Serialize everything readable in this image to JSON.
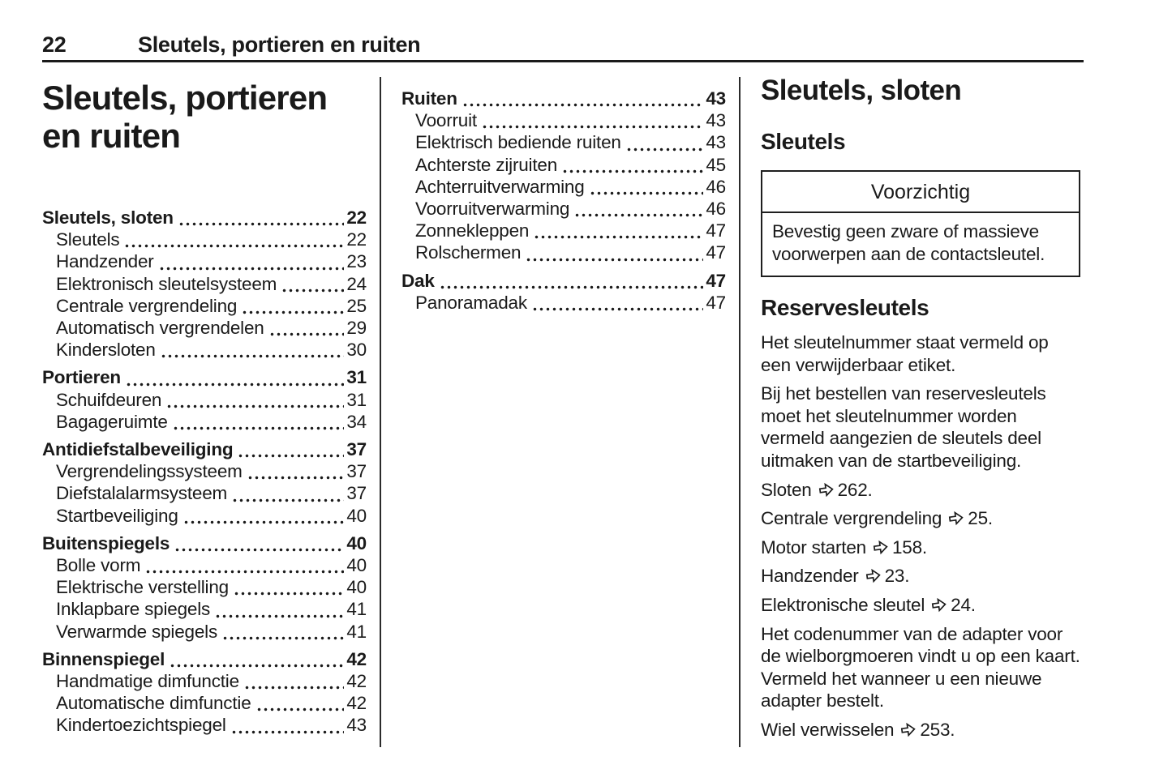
{
  "header": {
    "page_number": "22",
    "chapter_title": "Sleutels, portieren en ruiten"
  },
  "left_column": {
    "title": "Sleutels, portieren en ruiten",
    "toc": [
      {
        "label": "Sleutels, sloten",
        "page": "22",
        "bold": true
      },
      {
        "label": "Sleutels",
        "page": "22"
      },
      {
        "label": "Handzender",
        "page": "23"
      },
      {
        "label": "Elektronisch sleutelsysteem",
        "page": "24"
      },
      {
        "label": "Centrale vergrendeling",
        "page": "25"
      },
      {
        "label": "Automatisch vergrendelen",
        "page": "29"
      },
      {
        "label": "Kindersloten",
        "page": "30"
      },
      {
        "label": "Portieren",
        "page": "31",
        "bold": true
      },
      {
        "label": "Schuifdeuren",
        "page": "31"
      },
      {
        "label": "Bagageruimte",
        "page": "34"
      },
      {
        "label": "Antidiefstalbeveiliging",
        "page": "37",
        "bold": true
      },
      {
        "label": "Vergrendelingssysteem",
        "page": "37"
      },
      {
        "label": "Diefstalalarmsysteem",
        "page": "37"
      },
      {
        "label": "Startbeveiliging",
        "page": "40"
      },
      {
        "label": "Buitenspiegels",
        "page": "40",
        "bold": true
      },
      {
        "label": "Bolle vorm",
        "page": "40"
      },
      {
        "label": "Elektrische verstelling",
        "page": "40"
      },
      {
        "label": "Inklapbare spiegels",
        "page": "41"
      },
      {
        "label": "Verwarmde spiegels",
        "page": "41"
      },
      {
        "label": "Binnenspiegel",
        "page": "42",
        "bold": true
      },
      {
        "label": "Handmatige dimfunctie",
        "page": "42"
      },
      {
        "label": "Automatische dimfunctie",
        "page": "42"
      },
      {
        "label": "Kindertoezichtspiegel",
        "page": "43"
      }
    ]
  },
  "middle_column": {
    "toc": [
      {
        "label": "Ruiten",
        "page": "43",
        "bold": true
      },
      {
        "label": "Voorruit",
        "page": "43"
      },
      {
        "label": "Elektrisch bediende ruiten",
        "page": "43"
      },
      {
        "label": "Achterste zijruiten",
        "page": "45"
      },
      {
        "label": "Achterruitverwarming",
        "page": "46"
      },
      {
        "label": "Voorruitverwarming",
        "page": "46"
      },
      {
        "label": "Zonnekleppen",
        "page": "47"
      },
      {
        "label": "Rolschermen",
        "page": "47"
      },
      {
        "label": "Dak",
        "page": "47",
        "bold": true
      },
      {
        "label": "Panoramadak",
        "page": "47"
      }
    ]
  },
  "right_column": {
    "section_title": "Sleutels, sloten",
    "subsection_title": "Sleutels",
    "caution_box": {
      "title": "Voorzichtig",
      "body": "Bevestig geen zware of massieve voorwerpen aan de contactsleutel."
    },
    "subheading": "Reservesleutels",
    "content": [
      {
        "type": "para",
        "text": "Het sleutelnummer staat vermeld op een verwijderbaar etiket."
      },
      {
        "type": "para",
        "text": "Bij het bestellen van reservesleutels moet het sleutelnummer worden vermeld aangezien de sleutels deel uitmaken van de startbeveiliging."
      },
      {
        "type": "ref",
        "text": "Sloten",
        "page": "262"
      },
      {
        "type": "ref",
        "text": "Centrale vergrendeling",
        "page": "25"
      },
      {
        "type": "ref",
        "text": "Motor starten",
        "page": "158"
      },
      {
        "type": "ref",
        "text": "Handzender",
        "page": "23"
      },
      {
        "type": "ref",
        "text": "Elektronische sleutel",
        "page": "24"
      },
      {
        "type": "para",
        "text": "Het codenummer van de adapter voor de wielborgmoeren vindt u op een kaart. Vermeld het wanneer u een nieuwe adapter bestelt."
      },
      {
        "type": "ref",
        "text": "Wiel verwisselen",
        "page": "253"
      }
    ]
  },
  "icons": {
    "page_ref_arrow": "⇨"
  },
  "colors": {
    "text": "#1a1a1a",
    "background": "#ffffff"
  }
}
